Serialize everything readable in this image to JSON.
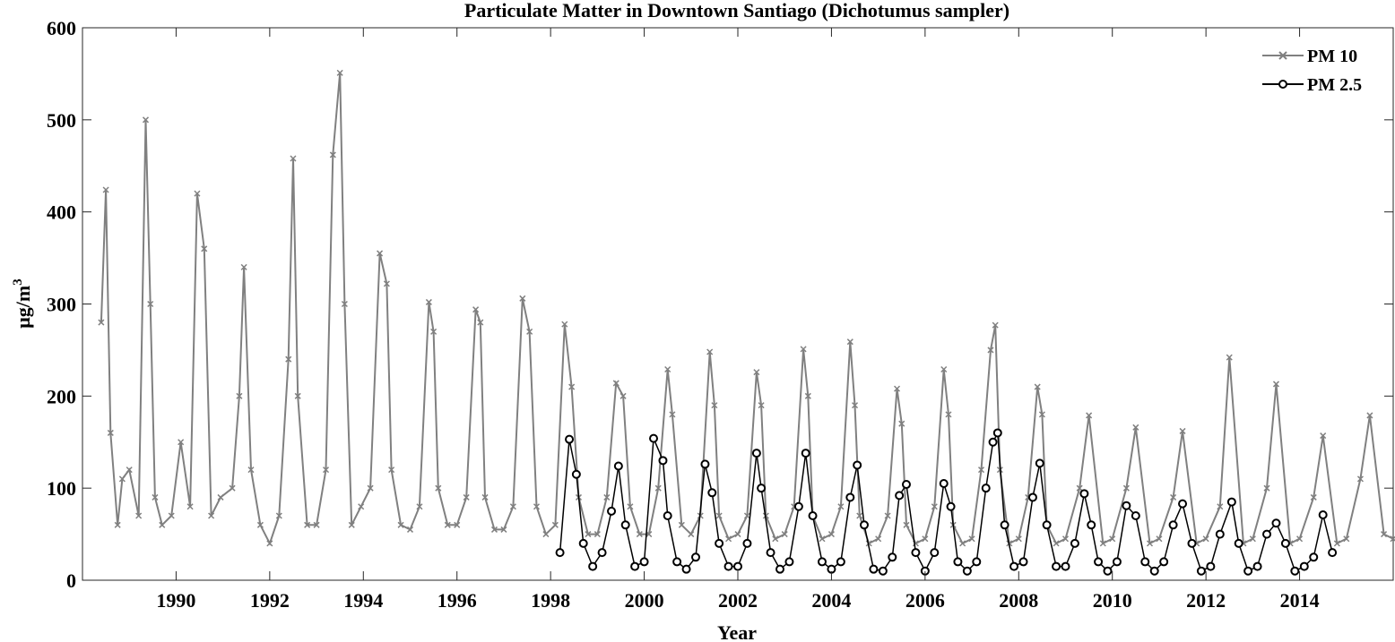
{
  "chart_data": {
    "type": "line",
    "title": "Particulate Matter in Downtown Santiago (Dichotumus sampler)",
    "xlabel": "Year",
    "ylabel_base": "μg/m",
    "ylabel_sup": "3",
    "xlim": [
      1988.0,
      2016.0
    ],
    "ylim": [
      0,
      600
    ],
    "xticks": [
      1990,
      1992,
      1994,
      1996,
      1998,
      2000,
      2002,
      2004,
      2006,
      2008,
      2010,
      2012,
      2014
    ],
    "yticks": [
      0,
      100,
      200,
      300,
      400,
      500,
      600
    ],
    "grid": false,
    "legend_position": "top-right",
    "series": [
      {
        "name": "PM 10",
        "color": "#808080",
        "marker": "x",
        "x": [
          1988.4,
          1988.5,
          1988.6,
          1988.75,
          1988.85,
          1989.0,
          1989.2,
          1989.35,
          1989.45,
          1989.55,
          1989.7,
          1989.9,
          1990.1,
          1990.3,
          1990.45,
          1990.6,
          1990.75,
          1990.95,
          1991.2,
          1991.35,
          1991.45,
          1991.6,
          1991.8,
          1992.0,
          1992.2,
          1992.4,
          1992.5,
          1992.6,
          1992.8,
          1993.0,
          1993.2,
          1993.35,
          1993.5,
          1993.6,
          1993.75,
          1993.95,
          1994.15,
          1994.35,
          1994.5,
          1994.6,
          1994.8,
          1995.0,
          1995.2,
          1995.4,
          1995.5,
          1995.6,
          1995.8,
          1996.0,
          1996.2,
          1996.4,
          1996.5,
          1996.6,
          1996.8,
          1997.0,
          1997.2,
          1997.4,
          1997.55,
          1997.7,
          1997.9,
          1998.1,
          1998.3,
          1998.45,
          1998.6,
          1998.8,
          1999.0,
          1999.2,
          1999.4,
          1999.55,
          1999.7,
          1999.9,
          2000.1,
          2000.3,
          2000.5,
          2000.6,
          2000.8,
          2001.0,
          2001.2,
          2001.4,
          2001.5,
          2001.6,
          2001.8,
          2002.0,
          2002.2,
          2002.4,
          2002.5,
          2002.6,
          2002.8,
          2003.0,
          2003.2,
          2003.4,
          2003.5,
          2003.6,
          2003.8,
          2004.0,
          2004.2,
          2004.4,
          2004.5,
          2004.6,
          2004.8,
          2005.0,
          2005.2,
          2005.4,
          2005.5,
          2005.6,
          2005.8,
          2006.0,
          2006.2,
          2006.4,
          2006.5,
          2006.6,
          2006.8,
          2007.0,
          2007.2,
          2007.4,
          2007.5,
          2007.6,
          2007.8,
          2008.0,
          2008.2,
          2008.4,
          2008.5,
          2008.6,
          2008.8,
          2009.0,
          2009.3,
          2009.5,
          2009.8,
          2010.0,
          2010.3,
          2010.5,
          2010.8,
          2011.0,
          2011.3,
          2011.5,
          2011.8,
          2012.0,
          2012.3,
          2012.5,
          2012.8,
          2013.0,
          2013.3,
          2013.5,
          2013.8,
          2014.0,
          2014.3,
          2014.5,
          2014.8,
          2015.0,
          2015.3,
          2015.5,
          2015.8,
          2016.0
        ],
        "values": [
          280,
          424,
          160,
          60,
          110,
          120,
          70,
          500,
          300,
          90,
          60,
          70,
          150,
          80,
          420,
          360,
          70,
          90,
          100,
          200,
          340,
          120,
          60,
          40,
          70,
          240,
          458,
          200,
          60,
          60,
          120,
          462,
          551,
          300,
          60,
          80,
          100,
          355,
          322,
          120,
          60,
          55,
          80,
          302,
          270,
          100,
          60,
          60,
          90,
          294,
          280,
          90,
          55,
          55,
          80,
          306,
          270,
          80,
          50,
          60,
          278,
          210,
          90,
          50,
          50,
          90,
          214,
          200,
          80,
          50,
          50,
          100,
          229,
          180,
          60,
          50,
          70,
          248,
          190,
          70,
          45,
          50,
          70,
          226,
          190,
          70,
          45,
          50,
          80,
          251,
          200,
          70,
          45,
          50,
          80,
          259,
          190,
          70,
          40,
          45,
          70,
          208,
          170,
          60,
          40,
          45,
          80,
          229,
          180,
          60,
          40,
          45,
          120,
          250,
          277,
          120,
          40,
          45,
          90,
          210,
          180,
          60,
          40,
          45,
          100,
          179,
          40,
          45,
          100,
          166,
          40,
          45,
          90,
          162,
          40,
          45,
          80,
          242,
          40,
          45,
          100,
          213,
          40,
          45,
          90,
          157,
          40,
          45,
          110,
          179,
          50,
          45
        ]
      },
      {
        "name": "PM 2.5",
        "color": "#000000",
        "marker": "o",
        "x": [
          1998.2,
          1998.4,
          1998.55,
          1998.7,
          1998.9,
          1999.1,
          1999.3,
          1999.45,
          1999.6,
          1999.8,
          2000.0,
          2000.2,
          2000.4,
          2000.5,
          2000.7,
          2000.9,
          2001.1,
          2001.3,
          2001.45,
          2001.6,
          2001.8,
          2002.0,
          2002.2,
          2002.4,
          2002.5,
          2002.7,
          2002.9,
          2003.1,
          2003.3,
          2003.45,
          2003.6,
          2003.8,
          2004.0,
          2004.2,
          2004.4,
          2004.55,
          2004.7,
          2004.9,
          2005.1,
          2005.3,
          2005.45,
          2005.6,
          2005.8,
          2006.0,
          2006.2,
          2006.4,
          2006.55,
          2006.7,
          2006.9,
          2007.1,
          2007.3,
          2007.45,
          2007.55,
          2007.7,
          2007.9,
          2008.1,
          2008.3,
          2008.45,
          2008.6,
          2008.8,
          2009.0,
          2009.2,
          2009.4,
          2009.55,
          2009.7,
          2009.9,
          2010.1,
          2010.3,
          2010.5,
          2010.7,
          2010.9,
          2011.1,
          2011.3,
          2011.5,
          2011.7,
          2011.9,
          2012.1,
          2012.3,
          2012.55,
          2012.7,
          2012.9,
          2013.1,
          2013.3,
          2013.5,
          2013.7,
          2013.9,
          2014.1,
          2014.3,
          2014.5,
          2014.7
        ],
        "values": [
          30,
          153,
          115,
          40,
          15,
          30,
          75,
          124,
          60,
          15,
          20,
          154,
          130,
          70,
          20,
          12,
          25,
          126,
          95,
          40,
          15,
          15,
          40,
          138,
          100,
          30,
          12,
          20,
          80,
          138,
          70,
          20,
          12,
          20,
          90,
          125,
          60,
          12,
          10,
          25,
          92,
          104,
          30,
          10,
          30,
          105,
          80,
          20,
          10,
          20,
          100,
          150,
          160,
          60,
          15,
          20,
          90,
          127,
          60,
          15,
          15,
          40,
          94,
          60,
          20,
          10,
          20,
          81,
          70,
          20,
          10,
          20,
          60,
          83,
          40,
          10,
          15,
          50,
          85,
          40,
          10,
          15,
          50,
          62,
          40,
          10,
          15,
          25,
          71,
          30
        ]
      }
    ]
  }
}
